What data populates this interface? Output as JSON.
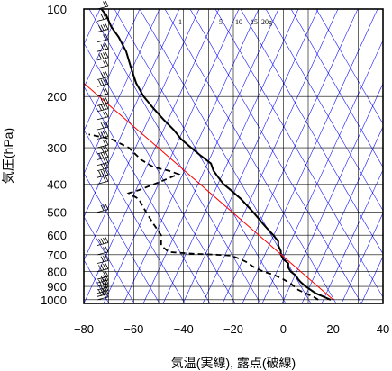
{
  "chart_data": {
    "type": "line",
    "title": "",
    "xlabel": "気温(実線), 露点(破線)",
    "ylabel": "気圧(hPa)",
    "xlim": [
      -80,
      40
    ],
    "ylim": [
      1030,
      100
    ],
    "y_scale": "log",
    "grid": true,
    "x_ticks": [
      -80,
      -60,
      -40,
      -20,
      0,
      20,
      40
    ],
    "x_tick_labels": [
      "−80",
      "−60",
      "−40",
      "−20",
      "0",
      "20",
      "40"
    ],
    "y_ticks": [
      100,
      200,
      300,
      400,
      500,
      600,
      700,
      800,
      900,
      1000
    ],
    "y_tick_labels": [
      "100",
      "200",
      "300",
      "400",
      "500",
      "600",
      "700",
      "800",
      "900",
      "1000"
    ],
    "mixing_ratio_labels": [
      "1",
      "5",
      "10",
      "15",
      "20g"
    ],
    "colors": {
      "temperature": "#000000",
      "dewpoint": "#000000",
      "reference_line": "#ff0000",
      "guide_lines": "#0000ff",
      "grid": "#000000"
    },
    "series": [
      {
        "kind": "temperature",
        "style": "solid",
        "points": [
          [
            19,
            1000
          ],
          [
            16,
            975
          ],
          [
            13,
            950
          ],
          [
            11,
            925
          ],
          [
            9,
            900
          ],
          [
            7,
            870
          ],
          [
            6,
            850
          ],
          [
            5,
            825
          ],
          [
            3,
            800
          ],
          [
            2,
            775
          ],
          [
            2,
            750
          ],
          [
            0,
            725
          ],
          [
            -1,
            700
          ],
          [
            -1,
            680
          ],
          [
            -2,
            650
          ],
          [
            -2,
            630
          ],
          [
            -4,
            600
          ],
          [
            -8,
            550
          ],
          [
            -12,
            500
          ],
          [
            -17,
            450
          ],
          [
            -21,
            420
          ],
          [
            -24,
            400
          ],
          [
            -26,
            380
          ],
          [
            -28,
            360
          ],
          [
            -29,
            340
          ],
          [
            -33,
            320
          ],
          [
            -37,
            300
          ],
          [
            -41,
            280
          ],
          [
            -44,
            260
          ],
          [
            -48,
            240
          ],
          [
            -52,
            220
          ],
          [
            -56,
            200
          ],
          [
            -59,
            180
          ],
          [
            -61,
            160
          ],
          [
            -63,
            140
          ],
          [
            -66,
            125
          ],
          [
            -69,
            115
          ],
          [
            -71,
            105
          ],
          [
            -73,
            100
          ]
        ]
      },
      {
        "kind": "dewpoint",
        "style": "dashed",
        "points": [
          [
            14,
            1000
          ],
          [
            12,
            975
          ],
          [
            10,
            960
          ],
          [
            6,
            925
          ],
          [
            3,
            880
          ],
          [
            0,
            850
          ],
          [
            -4,
            820
          ],
          [
            -8,
            800
          ],
          [
            -12,
            770
          ],
          [
            -15,
            740
          ],
          [
            -18,
            720
          ],
          [
            -21,
            705
          ],
          [
            -27,
            700
          ],
          [
            -36,
            695
          ],
          [
            -46,
            685
          ],
          [
            -49,
            650
          ],
          [
            -49,
            600
          ],
          [
            -52,
            550
          ],
          [
            -55,
            500
          ],
          [
            -58,
            450
          ],
          [
            -62,
            430
          ],
          [
            -58,
            420
          ],
          [
            -50,
            395
          ],
          [
            -42,
            370
          ],
          [
            -46,
            360
          ],
          [
            -52,
            350
          ],
          [
            -57,
            330
          ],
          [
            -62,
            300
          ],
          [
            -69,
            280
          ],
          [
            -78,
            270
          ]
        ]
      },
      {
        "kind": "reference",
        "style": "solid",
        "points": [
          [
            20,
            1000
          ],
          [
            -80,
            180
          ]
        ]
      }
    ],
    "wind_barbs_levels": [
      100,
      110,
      120,
      130,
      140,
      150,
      160,
      175,
      185,
      200,
      215,
      225,
      240,
      260,
      280,
      300,
      315,
      330,
      345,
      360,
      380,
      400,
      500,
      650,
      700,
      750,
      800,
      850,
      875,
      900,
      925,
      950,
      975,
      1000
    ]
  }
}
